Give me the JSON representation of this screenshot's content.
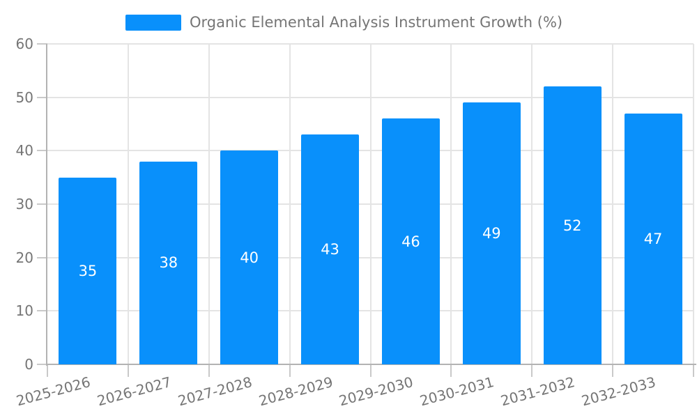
{
  "chart_data": {
    "type": "bar",
    "title": "Organic Elemental Analysis Instrument Growth (%)",
    "categories": [
      "2025-2026",
      "2026-2027",
      "2027-2028",
      "2028-2029",
      "2029-2030",
      "2030-2031",
      "2031-2032",
      "2032-2033"
    ],
    "values": [
      35,
      38,
      40,
      43,
      46,
      49,
      52,
      47
    ],
    "xlabel": "",
    "ylabel": "",
    "ylim": [
      0,
      60
    ],
    "yticks": [
      0,
      10,
      20,
      30,
      40,
      50,
      60
    ],
    "grid": true,
    "legend_position": "top",
    "bar_labels_shown": true,
    "style": {
      "bar_color": "#0990FB",
      "bar_label_color": "#ffffff",
      "axis_text_color": "#757575",
      "grid_color": "#e4e4e4",
      "axis_line_color": "#b3b3b3",
      "tick_color": "#c9c9c9"
    }
  }
}
